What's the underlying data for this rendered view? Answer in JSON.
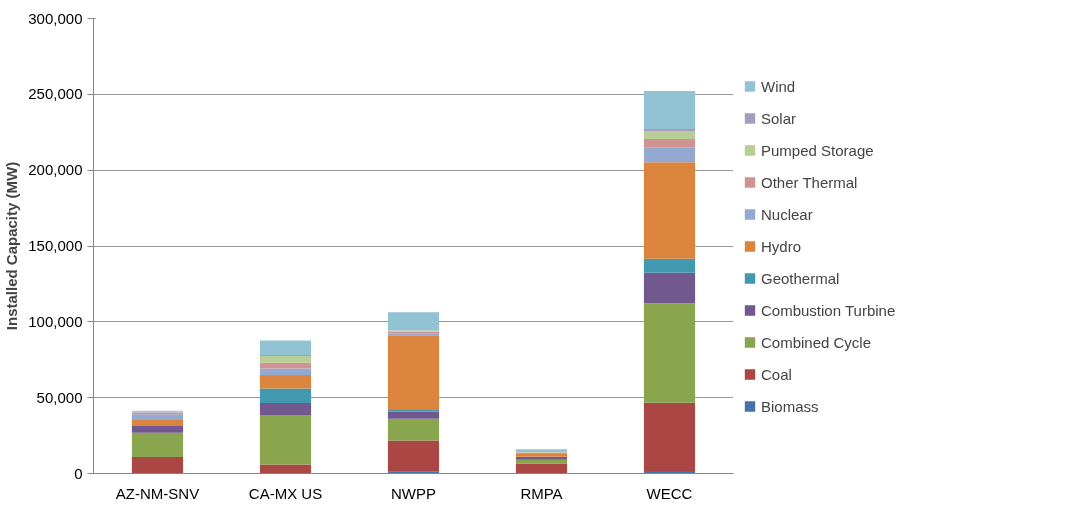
{
  "chart_data": {
    "type": "bar",
    "stacked": true,
    "ylabel": "Installed Capacity (MW)",
    "categories": [
      "AZ-NM-SNV",
      "CA-MX US",
      "NWPP",
      "RMPA",
      "WECC"
    ],
    "series": [
      {
        "name": "Biomass",
        "color": "#4572a7",
        "values": [
          300,
          null,
          1100,
          200,
          1700
        ]
      },
      {
        "name": "Coal",
        "color": "#aa4643",
        "values": [
          10500,
          6000,
          20700,
          6400,
          45000
        ]
      },
      {
        "name": "Combined Cycle",
        "color": "#89a54e",
        "values": [
          16000,
          32500,
          14300,
          2500,
          65500
        ]
      },
      {
        "name": "Combustion Turbine",
        "color": "#71588f",
        "values": [
          4500,
          8000,
          4700,
          1900,
          20100
        ]
      },
      {
        "name": "Geothermal",
        "color": "#4198af",
        "values": [
          0,
          9500,
          1000,
          0,
          9300
        ]
      },
      {
        "name": "Hydro",
        "color": "#db843d",
        "values": [
          3900,
          8900,
          49300,
          1900,
          63600
        ]
      },
      {
        "name": "Nuclear",
        "color": "#93a9cf",
        "values": [
          3800,
          4400,
          1000,
          0,
          9900
        ]
      },
      {
        "name": "Other Thermal",
        "color": "#d19392",
        "values": [
          1000,
          3800,
          1500,
          900,
          5500
        ]
      },
      {
        "name": "Pumped Storage",
        "color": "#b9cd96",
        "values": [
          200,
          4300,
          700,
          300,
          4900
        ]
      },
      {
        "name": "Solar",
        "color": "#a99bbd",
        "values": [
          500,
          800,
          null,
          100,
          1700
        ]
      },
      {
        "name": "Wind",
        "color": "#92c3d5",
        "values": [
          700,
          9500,
          12000,
          1800,
          25000
        ]
      }
    ],
    "ylim": [
      0,
      300000
    ],
    "yticks": [
      {
        "value": 0,
        "label": "0"
      },
      {
        "value": 50000,
        "label": "50,000"
      },
      {
        "value": 100000,
        "label": "100,000"
      },
      {
        "value": 150000,
        "label": "150,000"
      },
      {
        "value": 200000,
        "label": "200,000"
      },
      {
        "value": 250000,
        "label": "250,000"
      },
      {
        "value": 300000,
        "label": "300,000"
      }
    ],
    "grid": "y",
    "legend": "right"
  }
}
